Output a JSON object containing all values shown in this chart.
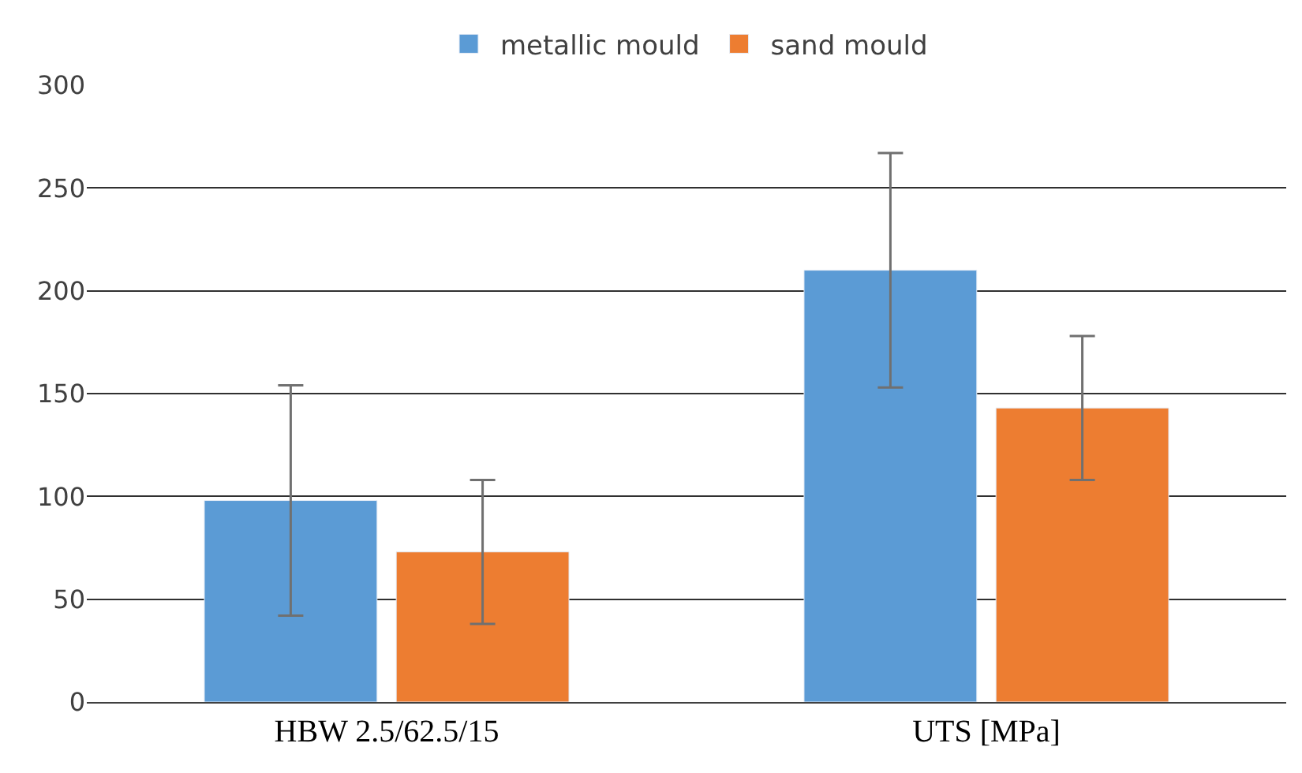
{
  "chart_data": {
    "type": "bar",
    "categories": [
      "HBW 2.5/62.5/15",
      "UTS [MPa]"
    ],
    "series": [
      {
        "name": "metallic mould",
        "color": "#5b9bd5",
        "values": [
          98,
          210
        ],
        "errors": [
          56,
          57
        ]
      },
      {
        "name": "sand mould",
        "color": "#ed7d31",
        "values": [
          73,
          143
        ],
        "errors": [
          35,
          35
        ]
      }
    ],
    "ylim": [
      0,
      300
    ],
    "yticks": [
      0,
      50,
      100,
      150,
      200,
      250,
      300
    ],
    "grid": "y",
    "legend": "top"
  }
}
